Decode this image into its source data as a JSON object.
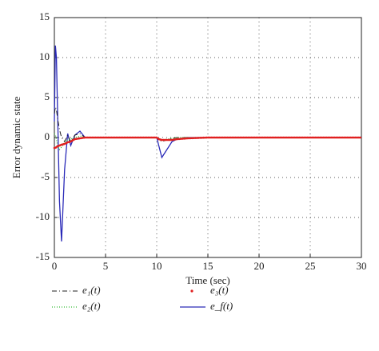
{
  "chart_data": {
    "type": "line",
    "x_label": "Time (sec)",
    "y_label": "Error dynamic state",
    "x": [
      0,
      0.1,
      0.2,
      0.3,
      0.5,
      0.7,
      1,
      1.3,
      1.6,
      2,
      2.5,
      3,
      4,
      6,
      10,
      10.2,
      10.5,
      11,
      11.5,
      12,
      13,
      15,
      20,
      30
    ],
    "series": [
      {
        "name": "e₁(t)",
        "color": "#222222",
        "style": "dashdot",
        "values": [
          3,
          3.8,
          3.5,
          2.5,
          1,
          0,
          -0.5,
          0.3,
          -0.5,
          0.3,
          0.5,
          0,
          0,
          0,
          0,
          -0.2,
          -0.5,
          -0.3,
          -0.1,
          0,
          0,
          0,
          0,
          0
        ]
      },
      {
        "name": "e₂(t)",
        "color": "#33bb33",
        "style": "dotted",
        "values": [
          0.5,
          0.3,
          -0.2,
          -1,
          -1.5,
          -1.2,
          -0.6,
          -0.3,
          -0.2,
          0,
          0.2,
          0,
          0,
          0,
          0,
          -0.1,
          -0.3,
          -0.2,
          -0.1,
          0,
          0,
          0,
          0,
          0
        ]
      },
      {
        "name": "e₃(t)",
        "color": "#e02020",
        "style": "dots",
        "values": [
          -1.3,
          -1.3,
          -1.2,
          -1.1,
          -1,
          -0.9,
          -0.8,
          -0.6,
          -0.5,
          -0.2,
          -0.1,
          0,
          0,
          0,
          0,
          -0.2,
          -0.3,
          -0.3,
          -0.3,
          -0.2,
          -0.1,
          0,
          0,
          0
        ]
      },
      {
        "name": "e_f(t)",
        "color": "#2a2ab8",
        "style": "solid",
        "values": [
          2,
          11.5,
          10,
          4,
          -8,
          -13,
          -4,
          0.5,
          -1,
          0.3,
          0.8,
          0,
          0,
          0,
          0,
          -1,
          -2.5,
          -1.5,
          -0.5,
          -0.2,
          0,
          0,
          0,
          0
        ]
      }
    ],
    "xlim": [
      0,
      30
    ],
    "xticks": [
      0,
      5,
      10,
      15,
      20,
      25,
      30
    ],
    "ylim": [
      -15,
      15
    ],
    "yticks": [
      -15,
      -10,
      -5,
      0,
      5,
      10,
      15
    ],
    "grid": true
  }
}
